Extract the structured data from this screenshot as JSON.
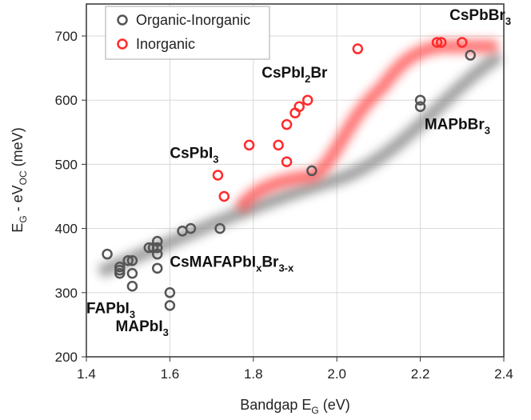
{
  "chart_data": {
    "type": "scatter",
    "xlabel": "Bandgap E_G (eV)",
    "xlabel_main": "Bandgap E",
    "xlabel_sub": "G",
    "xlabel_tail": " (eV)",
    "ylabel": "E_G - eV_OC (meV)",
    "xlim": [
      1.4,
      2.4
    ],
    "ylim": [
      200,
      750
    ],
    "xticks": [
      1.4,
      1.6,
      1.8,
      2.0,
      2.2,
      2.4
    ],
    "xtick_labels": [
      "1.4",
      "1.6",
      "1.8",
      "2.0",
      "2.2",
      "2.4"
    ],
    "yticks": [
      200,
      300,
      400,
      500,
      600,
      700
    ],
    "ytick_labels": [
      "200",
      "300",
      "400",
      "500",
      "600",
      "700"
    ],
    "grid": true,
    "legend_position": "top-left",
    "series": [
      {
        "name": "Organic-Inorganic",
        "color": "#555555",
        "points": [
          [
            1.45,
            360
          ],
          [
            1.48,
            340
          ],
          [
            1.48,
            335
          ],
          [
            1.48,
            330
          ],
          [
            1.5,
            350
          ],
          [
            1.51,
            350
          ],
          [
            1.51,
            330
          ],
          [
            1.51,
            310
          ],
          [
            1.55,
            370
          ],
          [
            1.56,
            370
          ],
          [
            1.57,
            380
          ],
          [
            1.57,
            370
          ],
          [
            1.57,
            360
          ],
          [
            1.57,
            338
          ],
          [
            1.6,
            300
          ],
          [
            1.6,
            280
          ],
          [
            1.63,
            396
          ],
          [
            1.65,
            400
          ],
          [
            1.72,
            400
          ],
          [
            1.94,
            490
          ],
          [
            2.2,
            600
          ],
          [
            2.2,
            590
          ],
          [
            2.32,
            670
          ]
        ]
      },
      {
        "name": "Inorganic",
        "color": "#ff2a2a",
        "points": [
          [
            1.715,
            483
          ],
          [
            1.73,
            450
          ],
          [
            1.79,
            530
          ],
          [
            1.86,
            530
          ],
          [
            1.88,
            504
          ],
          [
            1.88,
            562
          ],
          [
            1.9,
            580
          ],
          [
            1.91,
            590
          ],
          [
            1.93,
            600
          ],
          [
            2.05,
            680
          ],
          [
            2.24,
            690
          ],
          [
            2.25,
            690
          ],
          [
            2.3,
            690
          ]
        ]
      }
    ],
    "annotations": [
      {
        "text": "CsPbBr",
        "sub": "3",
        "x": 2.27,
        "y": 725
      },
      {
        "text": "CsPbI",
        "sub": "2",
        "tail": "Br",
        "x": 1.82,
        "y": 635
      },
      {
        "text": "MAPbBr",
        "sub": "3",
        "x": 2.21,
        "y": 555
      },
      {
        "text": "CsPbI",
        "sub": "3",
        "x": 1.6,
        "y": 510
      },
      {
        "text": "CsMAFAPbI",
        "sub": "x",
        "tail": "Br",
        "sub2": "3-x",
        "x": 1.6,
        "y": 340
      },
      {
        "text": "FAPbI",
        "sub": "3",
        "x": 1.4,
        "y": 268
      },
      {
        "text": "MAPbI",
        "sub": "3",
        "x": 1.47,
        "y": 240
      }
    ]
  }
}
